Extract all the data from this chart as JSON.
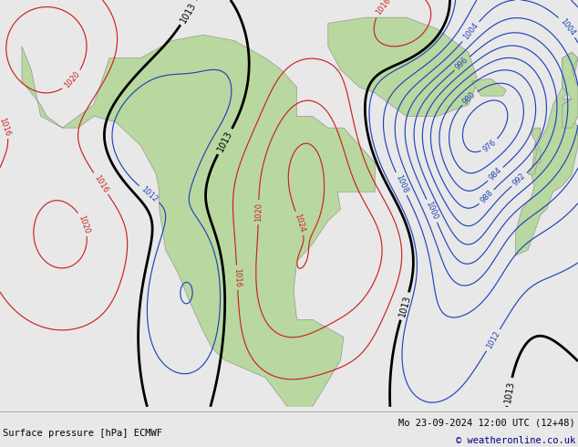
{
  "title_left": "Surface pressure [hPa] ECMWF",
  "title_right": "Mo 23-09-2024 12:00 UTC (12+48)",
  "copyright": "© weatheronline.co.uk",
  "bg_color": "#e8e8e8",
  "land_color": "#b8d8a0",
  "land_edge_color": "#888888",
  "figsize": [
    6.34,
    4.9
  ],
  "dpi": 100,
  "lon_min": -175,
  "lon_max": 10,
  "lat_min": 10,
  "lat_max": 80,
  "blue_color": "#2244bb",
  "red_color": "#cc2222",
  "black_lw": 2.0,
  "thin_lw": 0.85
}
